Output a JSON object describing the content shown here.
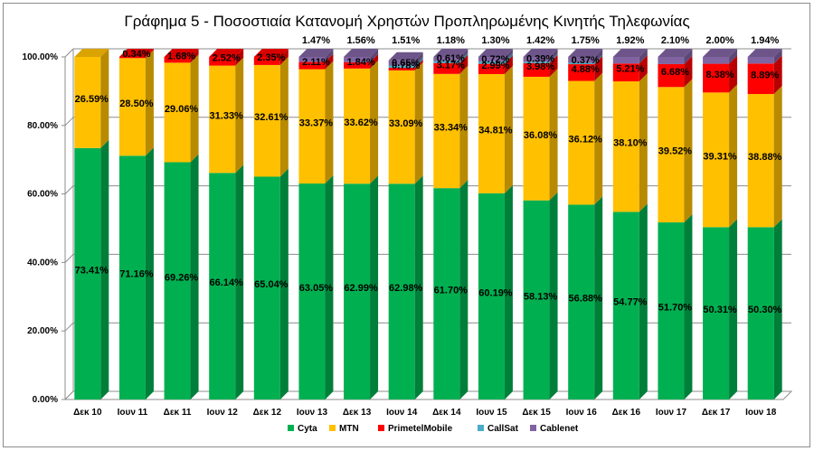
{
  "chart_data": {
    "type": "bar",
    "stacked": true,
    "title": "Γράφημα 5 - Ποσοστιαία Κατανομή Χρηστών Προπληρωμένης Κινητής Τηλεφωνίας",
    "categories": [
      "Δεκ 10",
      "Ιουν 11",
      "Δεκ 11",
      "Ιουν 12",
      "Δεκ 12",
      "Ιουν 13",
      "Δεκ 13",
      "Ιουν 14",
      "Δεκ 14",
      "Ιουν 15",
      "Δεκ 15",
      "Ιουν 16",
      "Δεκ 16",
      "Ιουν 17",
      "Δεκ 17",
      "Ιουν 18"
    ],
    "ylim": [
      0,
      100
    ],
    "yticks": [
      "0.00%",
      "20.00%",
      "40.00%",
      "60.00%",
      "80.00%",
      "100.00%"
    ],
    "grid": true,
    "legend_position": "bottom",
    "series": [
      {
        "name": "Cyta",
        "color": "#00b050",
        "values": [
          73.41,
          71.16,
          69.26,
          66.14,
          65.04,
          63.05,
          62.99,
          62.98,
          61.7,
          60.19,
          58.13,
          56.88,
          54.77,
          51.7,
          50.31,
          50.3
        ],
        "labels": [
          "73.41%",
          "71.16%",
          "69.26%",
          "66.14%",
          "65.04%",
          "63.05%",
          "62.99%",
          "62.98%",
          "61.70%",
          "60.19%",
          "58.13%",
          "56.88%",
          "54.77%",
          "51.70%",
          "50.31%",
          "50.30%"
        ]
      },
      {
        "name": "MTN",
        "color": "#ffc000",
        "values": [
          26.59,
          28.5,
          29.06,
          31.33,
          32.61,
          33.37,
          33.62,
          33.09,
          33.34,
          34.81,
          36.08,
          36.12,
          38.1,
          39.52,
          39.31,
          38.88
        ],
        "labels": [
          "26.59%",
          "28.50%",
          "29.06%",
          "31.33%",
          "32.61%",
          "33.37%",
          "33.62%",
          "33.09%",
          "33.34%",
          "34.81%",
          "36.08%",
          "36.12%",
          "38.10%",
          "39.52%",
          "39.31%",
          "38.88%"
        ]
      },
      {
        "name": "PrimetelMobile",
        "color": "#ff0000",
        "values": [
          0,
          0.34,
          1.68,
          2.52,
          2.35,
          2.11,
          1.84,
          0.78,
          3.17,
          2.99,
          3.98,
          4.88,
          5.21,
          6.68,
          8.38,
          8.89
        ],
        "labels": [
          "",
          "0.34%",
          "1.68%",
          "2.52%",
          "2.35%",
          "2.11%",
          "1.84%",
          "0.78%",
          "3.17%",
          "2.99%",
          "3.98%",
          "4.88%",
          "5.21%",
          "6.68%",
          "8.38%",
          "8.89%"
        ]
      },
      {
        "name": "CallSat",
        "color": "#4bacc6",
        "values": [
          0,
          0,
          0,
          0,
          0,
          0,
          0,
          0.65,
          0.61,
          0.72,
          0.39,
          0.37,
          0,
          0,
          0,
          0
        ],
        "labels": [
          "",
          "",
          "",
          "",
          "",
          "",
          "",
          "0.65%",
          "0.61%",
          "0.72%",
          "0.39%",
          "0.37%",
          "",
          "",
          "",
          ""
        ]
      },
      {
        "name": "Cablenet",
        "color": "#8064a2",
        "values": [
          0,
          0,
          0,
          0,
          0,
          1.47,
          1.56,
          1.51,
          1.18,
          1.3,
          1.42,
          1.75,
          1.92,
          2.1,
          2.0,
          1.94
        ],
        "labels": [
          "",
          "",
          "",
          "",
          "",
          "1.47%",
          "1.56%",
          "1.51%",
          "1.18%",
          "1.30%",
          "1.42%",
          "1.75%",
          "1.92%",
          "2.10%",
          "2.00%",
          "1.94%"
        ]
      }
    ]
  }
}
